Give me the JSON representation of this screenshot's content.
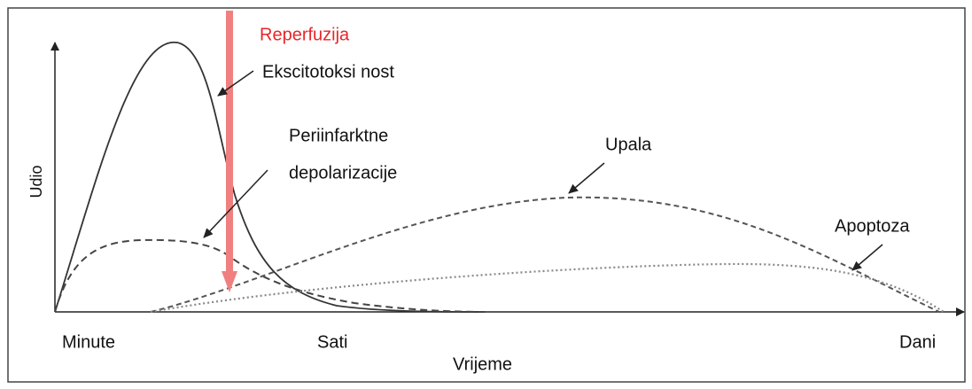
{
  "labels": {
    "reperfusion": "Reperfuzija",
    "excitotoxicity": "Ekscitotoksi nost",
    "periinfarct_1": "Periinfarktne",
    "periinfarct_2": "depolarizacije",
    "inflammation": "Upala",
    "apoptosis": "Apoptoza"
  },
  "axes": {
    "y_label": "Udio",
    "x_label": "Vrijeme",
    "x_ticks": [
      "Minute",
      "Sati",
      "Dani"
    ]
  }
}
